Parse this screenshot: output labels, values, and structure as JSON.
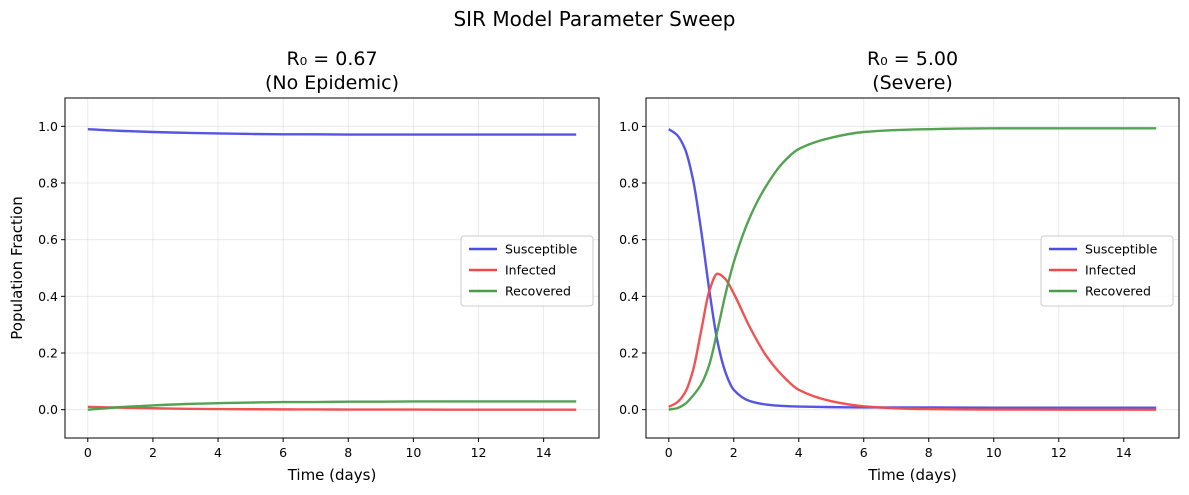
{
  "figure": {
    "title": "SIR Model Parameter Sweep"
  },
  "colors": {
    "Susceptible": "#4b4be6",
    "Infected": "#ef4a4a",
    "Recovered": "#4a9e4a"
  },
  "chart_data": [
    {
      "type": "line",
      "title_line1": "R₀ = 0.67",
      "title_line2": "(No Epidemic)",
      "xlabel": "Time (days)",
      "ylabel": "Population Fraction",
      "xlim": [
        -0.7,
        15.7
      ],
      "ylim": [
        -0.1,
        1.1
      ],
      "xticks": [
        0,
        2,
        4,
        6,
        8,
        10,
        12,
        14
      ],
      "yticks": [
        0.0,
        0.2,
        0.4,
        0.6,
        0.8,
        1.0
      ],
      "xtick_labels": [
        "0",
        "2",
        "4",
        "6",
        "8",
        "10",
        "12",
        "14"
      ],
      "ytick_labels": [
        "0.0",
        "0.2",
        "0.4",
        "0.6",
        "0.8",
        "1.0"
      ],
      "grid": true,
      "legend_position": "center-right",
      "x": [
        0,
        1,
        2,
        3,
        4,
        5,
        6,
        7,
        8,
        9,
        10,
        11,
        12,
        13,
        14,
        15
      ],
      "series": [
        {
          "name": "Susceptible",
          "values": [
            0.99,
            0.984,
            0.98,
            0.977,
            0.975,
            0.973,
            0.972,
            0.972,
            0.971,
            0.971,
            0.971,
            0.971,
            0.971,
            0.971,
            0.971,
            0.971
          ]
        },
        {
          "name": "Infected",
          "values": [
            0.01,
            0.007,
            0.005,
            0.003,
            0.002,
            0.0015,
            0.001,
            0.0007,
            0.0005,
            0.0003,
            0.0002,
            0.0001,
            0.0001,
            0.0,
            0.0,
            0.0
          ]
        },
        {
          "name": "Recovered",
          "values": [
            0.0,
            0.009,
            0.015,
            0.02,
            0.023,
            0.025,
            0.027,
            0.027,
            0.028,
            0.028,
            0.029,
            0.029,
            0.029,
            0.029,
            0.029,
            0.029
          ]
        }
      ]
    },
    {
      "type": "line",
      "title_line1": "R₀ = 5.00",
      "title_line2": "(Severe)",
      "xlabel": "Time (days)",
      "ylabel": "",
      "xlim": [
        -0.7,
        15.7
      ],
      "ylim": [
        -0.1,
        1.1
      ],
      "xticks": [
        0,
        2,
        4,
        6,
        8,
        10,
        12,
        14
      ],
      "yticks": [
        0.0,
        0.2,
        0.4,
        0.6,
        0.8,
        1.0
      ],
      "xtick_labels": [
        "0",
        "2",
        "4",
        "6",
        "8",
        "10",
        "12",
        "14"
      ],
      "ytick_labels": [
        "0.0",
        "0.2",
        "0.4",
        "0.6",
        "0.8",
        "1.0"
      ],
      "grid": true,
      "legend_position": "center-right",
      "x": [
        0,
        0.25,
        0.5,
        0.75,
        1.0,
        1.25,
        1.5,
        1.75,
        2.0,
        2.5,
        3.0,
        3.5,
        4.0,
        5.0,
        6.0,
        7.0,
        8.0,
        10.0,
        12.0,
        15.0
      ],
      "series": [
        {
          "name": "Susceptible",
          "values": [
            0.99,
            0.97,
            0.92,
            0.81,
            0.63,
            0.42,
            0.24,
            0.13,
            0.07,
            0.03,
            0.018,
            0.013,
            0.011,
            0.009,
            0.008,
            0.008,
            0.008,
            0.007,
            0.007,
            0.007
          ]
        },
        {
          "name": "Infected",
          "values": [
            0.01,
            0.025,
            0.06,
            0.14,
            0.28,
            0.42,
            0.48,
            0.46,
            0.41,
            0.29,
            0.19,
            0.12,
            0.07,
            0.03,
            0.012,
            0.005,
            0.002,
            0.0005,
            0.0001,
            0.0
          ]
        },
        {
          "name": "Recovered",
          "values": [
            0.0,
            0.005,
            0.02,
            0.05,
            0.09,
            0.16,
            0.28,
            0.41,
            0.52,
            0.68,
            0.79,
            0.87,
            0.92,
            0.96,
            0.98,
            0.987,
            0.99,
            0.993,
            0.993,
            0.993
          ]
        }
      ]
    }
  ]
}
